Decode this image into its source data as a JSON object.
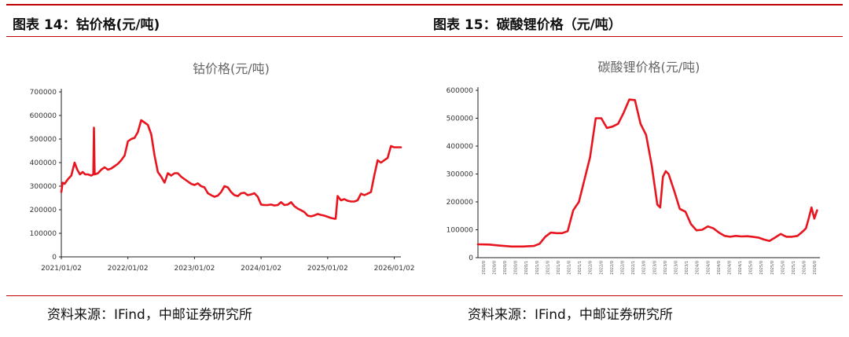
{
  "panels": [
    {
      "figure_title": "图表 14：钴价格(元/吨)",
      "source": "资料来源：IFind，中邮证券研究所"
    },
    {
      "figure_title": "图表 15：碳酸锂价格（元/吨）",
      "source": "资料来源：IFind，中邮证券研究所"
    }
  ],
  "chart_data": [
    {
      "type": "line",
      "title": "钴价格(元/吨)",
      "xlabel": "",
      "ylabel": "",
      "ylim": [
        0,
        700000
      ],
      "yticks": [
        "0",
        "100000",
        "200000",
        "300000",
        "400000",
        "500000",
        "600000",
        "700000"
      ],
      "xticks": [
        "2021/01/02",
        "2022/01/02",
        "2023/01/02",
        "2024/01/02",
        "2025/01/02",
        "2026/01/02"
      ],
      "grid": false,
      "color": "#e8141e",
      "series": [
        {
          "x": [
            2021.0,
            2021.02,
            2021.05,
            2021.1,
            2021.15,
            2021.2,
            2021.24,
            2021.28,
            2021.32,
            2021.36,
            2021.4,
            2021.45,
            2021.48,
            2021.49,
            2021.5,
            2021.55,
            2021.6,
            2021.65,
            2021.7,
            2021.75,
            2021.8,
            2021.85,
            2021.9,
            2021.95,
            2022.0,
            2022.05,
            2022.1,
            2022.15,
            2022.2,
            2022.25,
            2022.3,
            2022.35,
            2022.4,
            2022.45,
            2022.5,
            2022.55,
            2022.6,
            2022.65,
            2022.7,
            2022.75,
            2022.8,
            2022.85,
            2022.9,
            2022.95,
            2023.0,
            2023.05,
            2023.1,
            2023.15,
            2023.2,
            2023.25,
            2023.3,
            2023.35,
            2023.4,
            2023.45,
            2023.5,
            2023.55,
            2023.6,
            2023.65,
            2023.7,
            2023.75,
            2023.8,
            2023.85,
            2023.9,
            2023.95,
            2024.0,
            2024.05,
            2024.1,
            2024.15,
            2024.2,
            2024.25,
            2024.3,
            2024.35,
            2024.4,
            2024.45,
            2024.5,
            2024.55,
            2024.6,
            2024.65,
            2024.7,
            2024.75,
            2024.8,
            2024.85,
            2024.9,
            2024.95,
            2025.0,
            2025.05,
            2025.1,
            2025.12,
            2025.15,
            2025.2,
            2025.25,
            2025.3,
            2025.35,
            2025.4,
            2025.45,
            2025.5,
            2025.55,
            2025.6,
            2025.65,
            2025.7,
            2025.75,
            2025.8,
            2025.85,
            2025.9,
            2025.95,
            2026.0,
            2026.05,
            2026.1
          ],
          "y": [
            275000,
            315000,
            310000,
            330000,
            345000,
            400000,
            370000,
            350000,
            360000,
            350000,
            350000,
            345000,
            350000,
            548000,
            350000,
            355000,
            370000,
            380000,
            370000,
            375000,
            385000,
            395000,
            410000,
            430000,
            490000,
            500000,
            505000,
            530000,
            580000,
            570000,
            560000,
            520000,
            430000,
            360000,
            340000,
            315000,
            355000,
            345000,
            355000,
            355000,
            340000,
            330000,
            320000,
            310000,
            305000,
            312000,
            300000,
            295000,
            270000,
            262000,
            255000,
            260000,
            275000,
            300000,
            295000,
            275000,
            262000,
            258000,
            270000,
            272000,
            262000,
            265000,
            270000,
            255000,
            222000,
            220000,
            220000,
            222000,
            218000,
            220000,
            232000,
            220000,
            222000,
            232000,
            215000,
            205000,
            198000,
            190000,
            175000,
            172000,
            176000,
            182000,
            178000,
            175000,
            170000,
            165000,
            162000,
            162000,
            258000,
            240000,
            245000,
            238000,
            235000,
            235000,
            240000,
            268000,
            262000,
            268000,
            275000,
            345000,
            410000,
            400000,
            410000,
            420000,
            470000,
            465000,
            465000,
            465000
          ]
        }
      ]
    },
    {
      "type": "line",
      "title": "碳酸锂价格(元/吨)",
      "xlabel": "",
      "ylabel": "",
      "ylim": [
        0,
        600000
      ],
      "yticks": [
        "0",
        "100000",
        "200000",
        "300000",
        "400000",
        "500000",
        "600000"
      ],
      "xticks": [
        "2020/0",
        "2020/0",
        "2020/0",
        "2020/0",
        "2020/1",
        "2021/0",
        "2021/0",
        "2021/0",
        "2021/0",
        "2021/1",
        "2022/0",
        "2022/0",
        "2022/0",
        "2022/0",
        "2022/1",
        "2023/0",
        "2023/0",
        "2023/0",
        "2023/0",
        "2023/1",
        "2024/0",
        "2024/0",
        "2024/0",
        "2024/0",
        "2024/1",
        "2025/0",
        "2025/0",
        "2025/0",
        "2025/0",
        "2025/1",
        "2026/0",
        "2026/0"
      ],
      "grid": false,
      "color": "#e8141e",
      "series": [
        {
          "x": [
            2020.0,
            2020.2,
            2020.4,
            2020.6,
            2020.8,
            2021.0,
            2021.1,
            2021.2,
            2021.3,
            2021.4,
            2021.5,
            2021.6,
            2021.7,
            2021.8,
            2021.9,
            2022.0,
            2022.1,
            2022.2,
            2022.3,
            2022.4,
            2022.5,
            2022.6,
            2022.7,
            2022.8,
            2022.9,
            2023.0,
            2023.1,
            2023.2,
            2023.25,
            2023.3,
            2023.35,
            2023.4,
            2023.5,
            2023.6,
            2023.7,
            2023.8,
            2023.9,
            2024.0,
            2024.1,
            2024.2,
            2024.3,
            2024.4,
            2024.5,
            2024.6,
            2024.7,
            2024.8,
            2024.9,
            2025.0,
            2025.1,
            2025.2,
            2025.3,
            2025.4,
            2025.5,
            2025.6,
            2025.7,
            2025.8,
            2025.85,
            2025.9,
            2025.95,
            2026.0,
            2026.05
          ],
          "y": [
            48000,
            47000,
            43000,
            40000,
            40000,
            42000,
            50000,
            75000,
            90000,
            88000,
            88000,
            95000,
            170000,
            200000,
            280000,
            360000,
            500000,
            500000,
            465000,
            470000,
            480000,
            520000,
            567000,
            565000,
            480000,
            440000,
            330000,
            190000,
            180000,
            290000,
            310000,
            300000,
            240000,
            175000,
            165000,
            120000,
            98000,
            100000,
            112000,
            105000,
            90000,
            78000,
            75000,
            78000,
            76000,
            77000,
            75000,
            72000,
            65000,
            60000,
            72000,
            85000,
            75000,
            75000,
            78000,
            95000,
            105000,
            140000,
            180000,
            140000,
            170000
          ]
        }
      ]
    }
  ]
}
